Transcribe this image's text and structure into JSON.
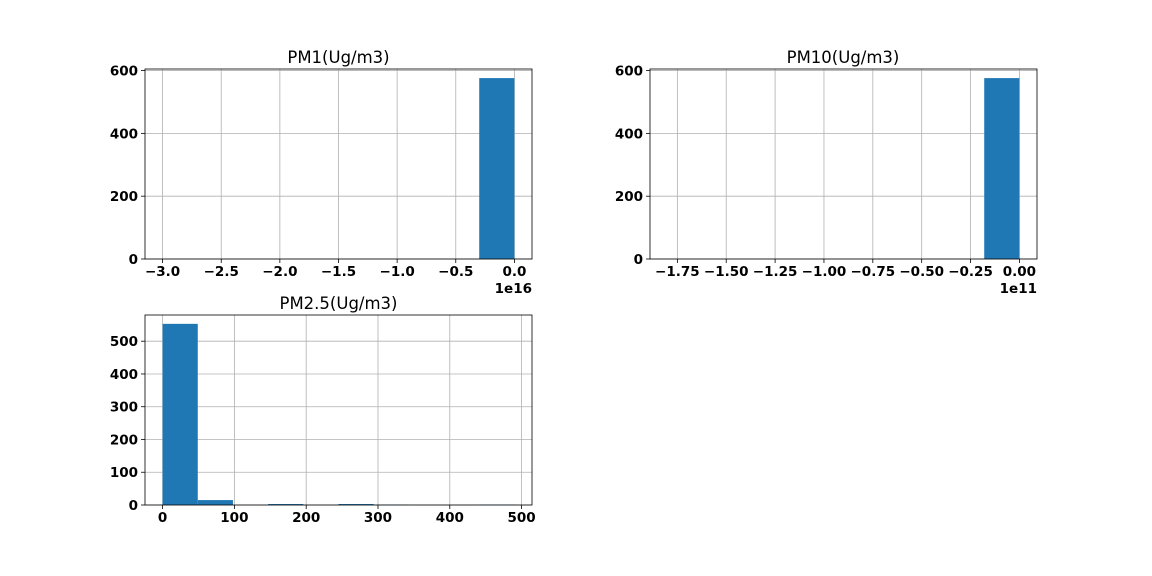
{
  "chart_data": [
    {
      "type": "bar",
      "title": "PM1(Ug/m3)",
      "xlabel": "",
      "ylabel": "",
      "offset_text": "1e16",
      "x_ticks": [
        -3.0,
        -2.5,
        -2.0,
        -1.5,
        -1.0,
        -0.5,
        0.0
      ],
      "x_tick_labels": [
        "−3.0",
        "−2.5",
        "−2.0",
        "−1.5",
        "−1.0",
        "−0.5",
        "0.0"
      ],
      "y_ticks": [
        0,
        200,
        400,
        600
      ],
      "y_tick_labels": [
        "0",
        "200",
        "400",
        "600"
      ],
      "xlim": [
        -3.15,
        0.15
      ],
      "ylim": [
        0,
        605
      ],
      "bins": [
        {
          "x0": -3.0,
          "x1": -2.7,
          "count": 0
        },
        {
          "x0": -2.7,
          "x1": -2.4,
          "count": 0
        },
        {
          "x0": -2.4,
          "x1": -2.1,
          "count": 0
        },
        {
          "x0": -2.1,
          "x1": -1.8,
          "count": 0
        },
        {
          "x0": -1.8,
          "x1": -1.5,
          "count": 0
        },
        {
          "x0": -1.5,
          "x1": -1.2,
          "count": 0
        },
        {
          "x0": -1.2,
          "x1": -0.9,
          "count": 0
        },
        {
          "x0": -0.9,
          "x1": -0.6,
          "count": 0
        },
        {
          "x0": -0.6,
          "x1": -0.3,
          "count": 0
        },
        {
          "x0": -0.3,
          "x1": 0.0,
          "count": 576
        }
      ],
      "grid": true,
      "bar_color": "#1f77b4"
    },
    {
      "type": "bar",
      "title": "PM10(Ug/m3)",
      "xlabel": "",
      "ylabel": "",
      "offset_text": "1e11",
      "x_ticks": [
        -1.75,
        -1.5,
        -1.25,
        -1.0,
        -0.75,
        -0.5,
        -0.25,
        0.0
      ],
      "x_tick_labels": [
        "−1.75",
        "−1.50",
        "−1.25",
        "−1.00",
        "−0.75",
        "−0.50",
        "−0.25",
        "0.00"
      ],
      "y_ticks": [
        0,
        200,
        400,
        600
      ],
      "y_tick_labels": [
        "0",
        "200",
        "400",
        "600"
      ],
      "xlim": [
        -1.89,
        0.09
      ],
      "ylim": [
        0,
        605
      ],
      "bins": [
        {
          "x0": -1.8,
          "x1": -1.62,
          "count": 0
        },
        {
          "x0": -1.62,
          "x1": -1.44,
          "count": 0
        },
        {
          "x0": -1.44,
          "x1": -1.26,
          "count": 0
        },
        {
          "x0": -1.26,
          "x1": -1.08,
          "count": 0
        },
        {
          "x0": -1.08,
          "x1": -0.9,
          "count": 0
        },
        {
          "x0": -0.9,
          "x1": -0.72,
          "count": 0
        },
        {
          "x0": -0.72,
          "x1": -0.54,
          "count": 0
        },
        {
          "x0": -0.54,
          "x1": -0.36,
          "count": 0
        },
        {
          "x0": -0.36,
          "x1": -0.18,
          "count": 0
        },
        {
          "x0": -0.18,
          "x1": 0.0,
          "count": 576
        }
      ],
      "grid": true,
      "bar_color": "#1f77b4"
    },
    {
      "type": "bar",
      "title": "PM2.5(Ug/m3)",
      "xlabel": "",
      "ylabel": "",
      "offset_text": "",
      "x_ticks": [
        0,
        100,
        200,
        300,
        400,
        500
      ],
      "x_tick_labels": [
        "0",
        "100",
        "200",
        "300",
        "400",
        "500"
      ],
      "y_ticks": [
        0,
        100,
        200,
        300,
        400,
        500
      ],
      "y_tick_labels": [
        "0",
        "100",
        "200",
        "300",
        "400",
        "500"
      ],
      "xlim": [
        -24.5,
        514.5
      ],
      "ylim": [
        0,
        580
      ],
      "bins": [
        {
          "x0": 0,
          "x1": 49,
          "count": 553
        },
        {
          "x0": 49,
          "x1": 98,
          "count": 15
        },
        {
          "x0": 98,
          "x1": 147,
          "count": 0
        },
        {
          "x0": 147,
          "x1": 196,
          "count": 3
        },
        {
          "x0": 196,
          "x1": 245,
          "count": 0
        },
        {
          "x0": 245,
          "x1": 294,
          "count": 3
        },
        {
          "x0": 294,
          "x1": 343,
          "count": 1
        },
        {
          "x0": 343,
          "x1": 392,
          "count": 0
        },
        {
          "x0": 392,
          "x1": 441,
          "count": 0
        },
        {
          "x0": 441,
          "x1": 490,
          "count": 1
        }
      ],
      "grid": true,
      "bar_color": "#1f77b4"
    }
  ]
}
